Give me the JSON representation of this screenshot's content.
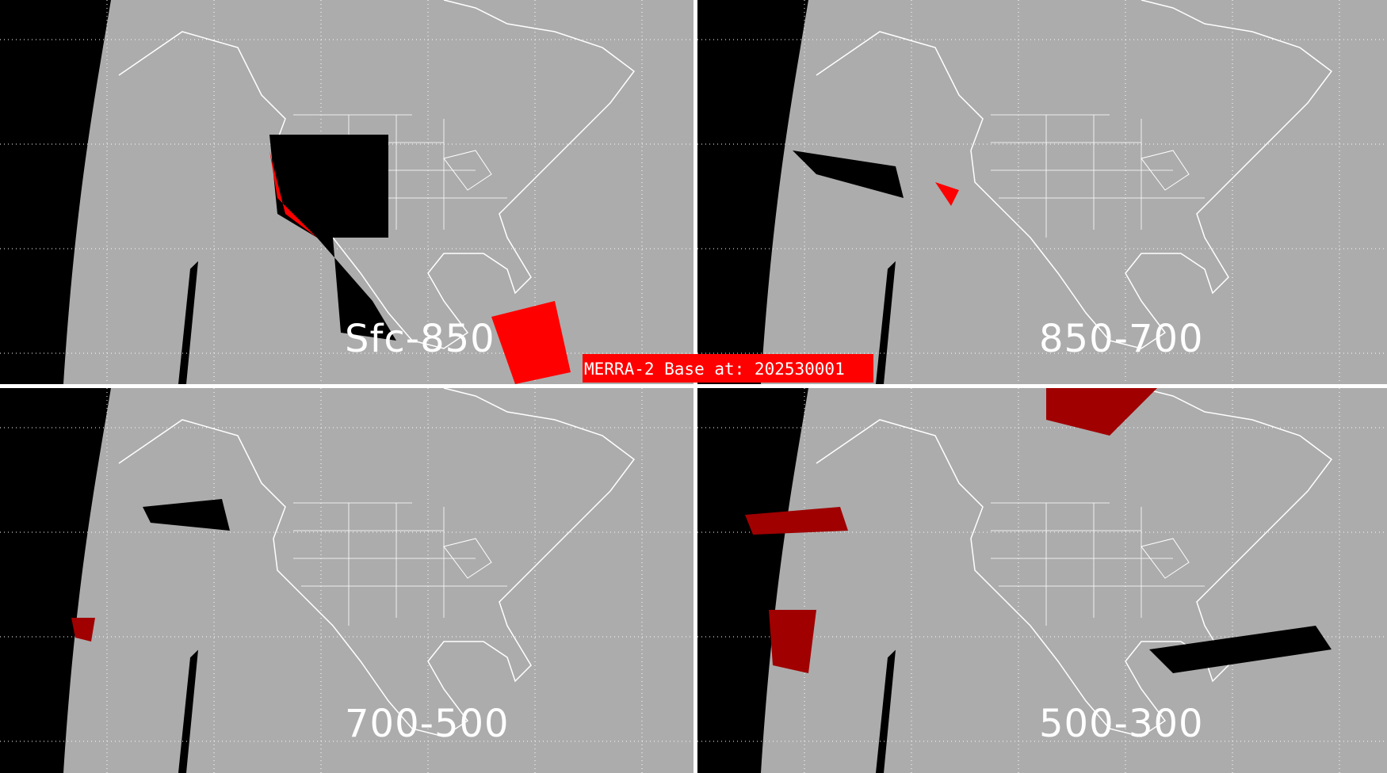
{
  "panels": [
    {
      "label": "Sfc-850",
      "highlight": "#ff0000"
    },
    {
      "label": "850-700",
      "highlight": "#ff0000"
    },
    {
      "label": "700-500",
      "highlight": "#a00000"
    },
    {
      "label": "500-300",
      "highlight": "#a00000"
    }
  ],
  "banner": {
    "text": "MERRA-2 Base at: 202530001"
  },
  "colors": {
    "background": "#acacac",
    "cloud": "#000000",
    "coastline": "#ffffff",
    "banner": "#ff0000"
  }
}
